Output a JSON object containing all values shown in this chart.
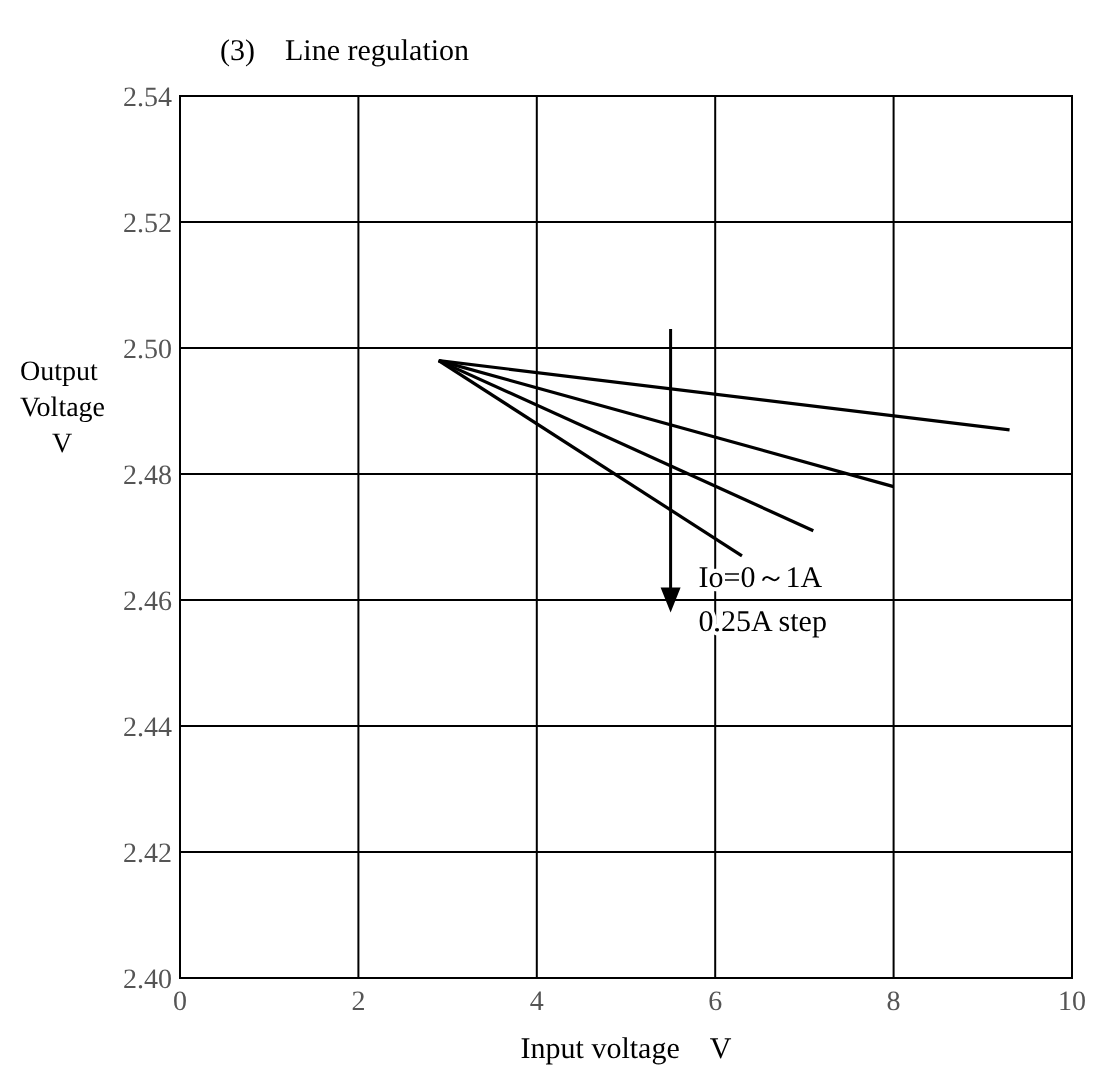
{
  "chart_data": {
    "type": "line",
    "title": "(3)　Line regulation",
    "xlabel": "Input voltage　V",
    "ylabel": "Output Voltage V",
    "xlim": [
      0,
      10
    ],
    "xticks": [
      0,
      2,
      4,
      6,
      8,
      10
    ],
    "ylim": [
      2.4,
      2.54
    ],
    "yticks": [
      {
        "value": 2.4,
        "label": "2.40"
      },
      2.42,
      2.44,
      2.46,
      2.48,
      {
        "value": 2.5,
        "label": "2.50"
      },
      2.52,
      2.54
    ],
    "grid": true,
    "marker": "none",
    "line_style": "solid",
    "series": [
      {
        "color": "#000000",
        "x": [
          2.9,
          9.3
        ],
        "values": [
          2.498,
          2.487
        ]
      },
      {
        "color": "#000000",
        "x": [
          2.9,
          8
        ],
        "values": [
          2.498,
          2.478
        ]
      },
      {
        "color": "#000000",
        "x": [
          2.9,
          7.1
        ],
        "values": [
          2.498,
          2.471
        ]
      },
      {
        "color": "#000000",
        "x": [
          2.9,
          6.3
        ],
        "values": [
          2.498,
          2.467
        ]
      }
    ],
    "annotations": [
      "Io=0～1A",
      "0.25A step"
    ]
  }
}
